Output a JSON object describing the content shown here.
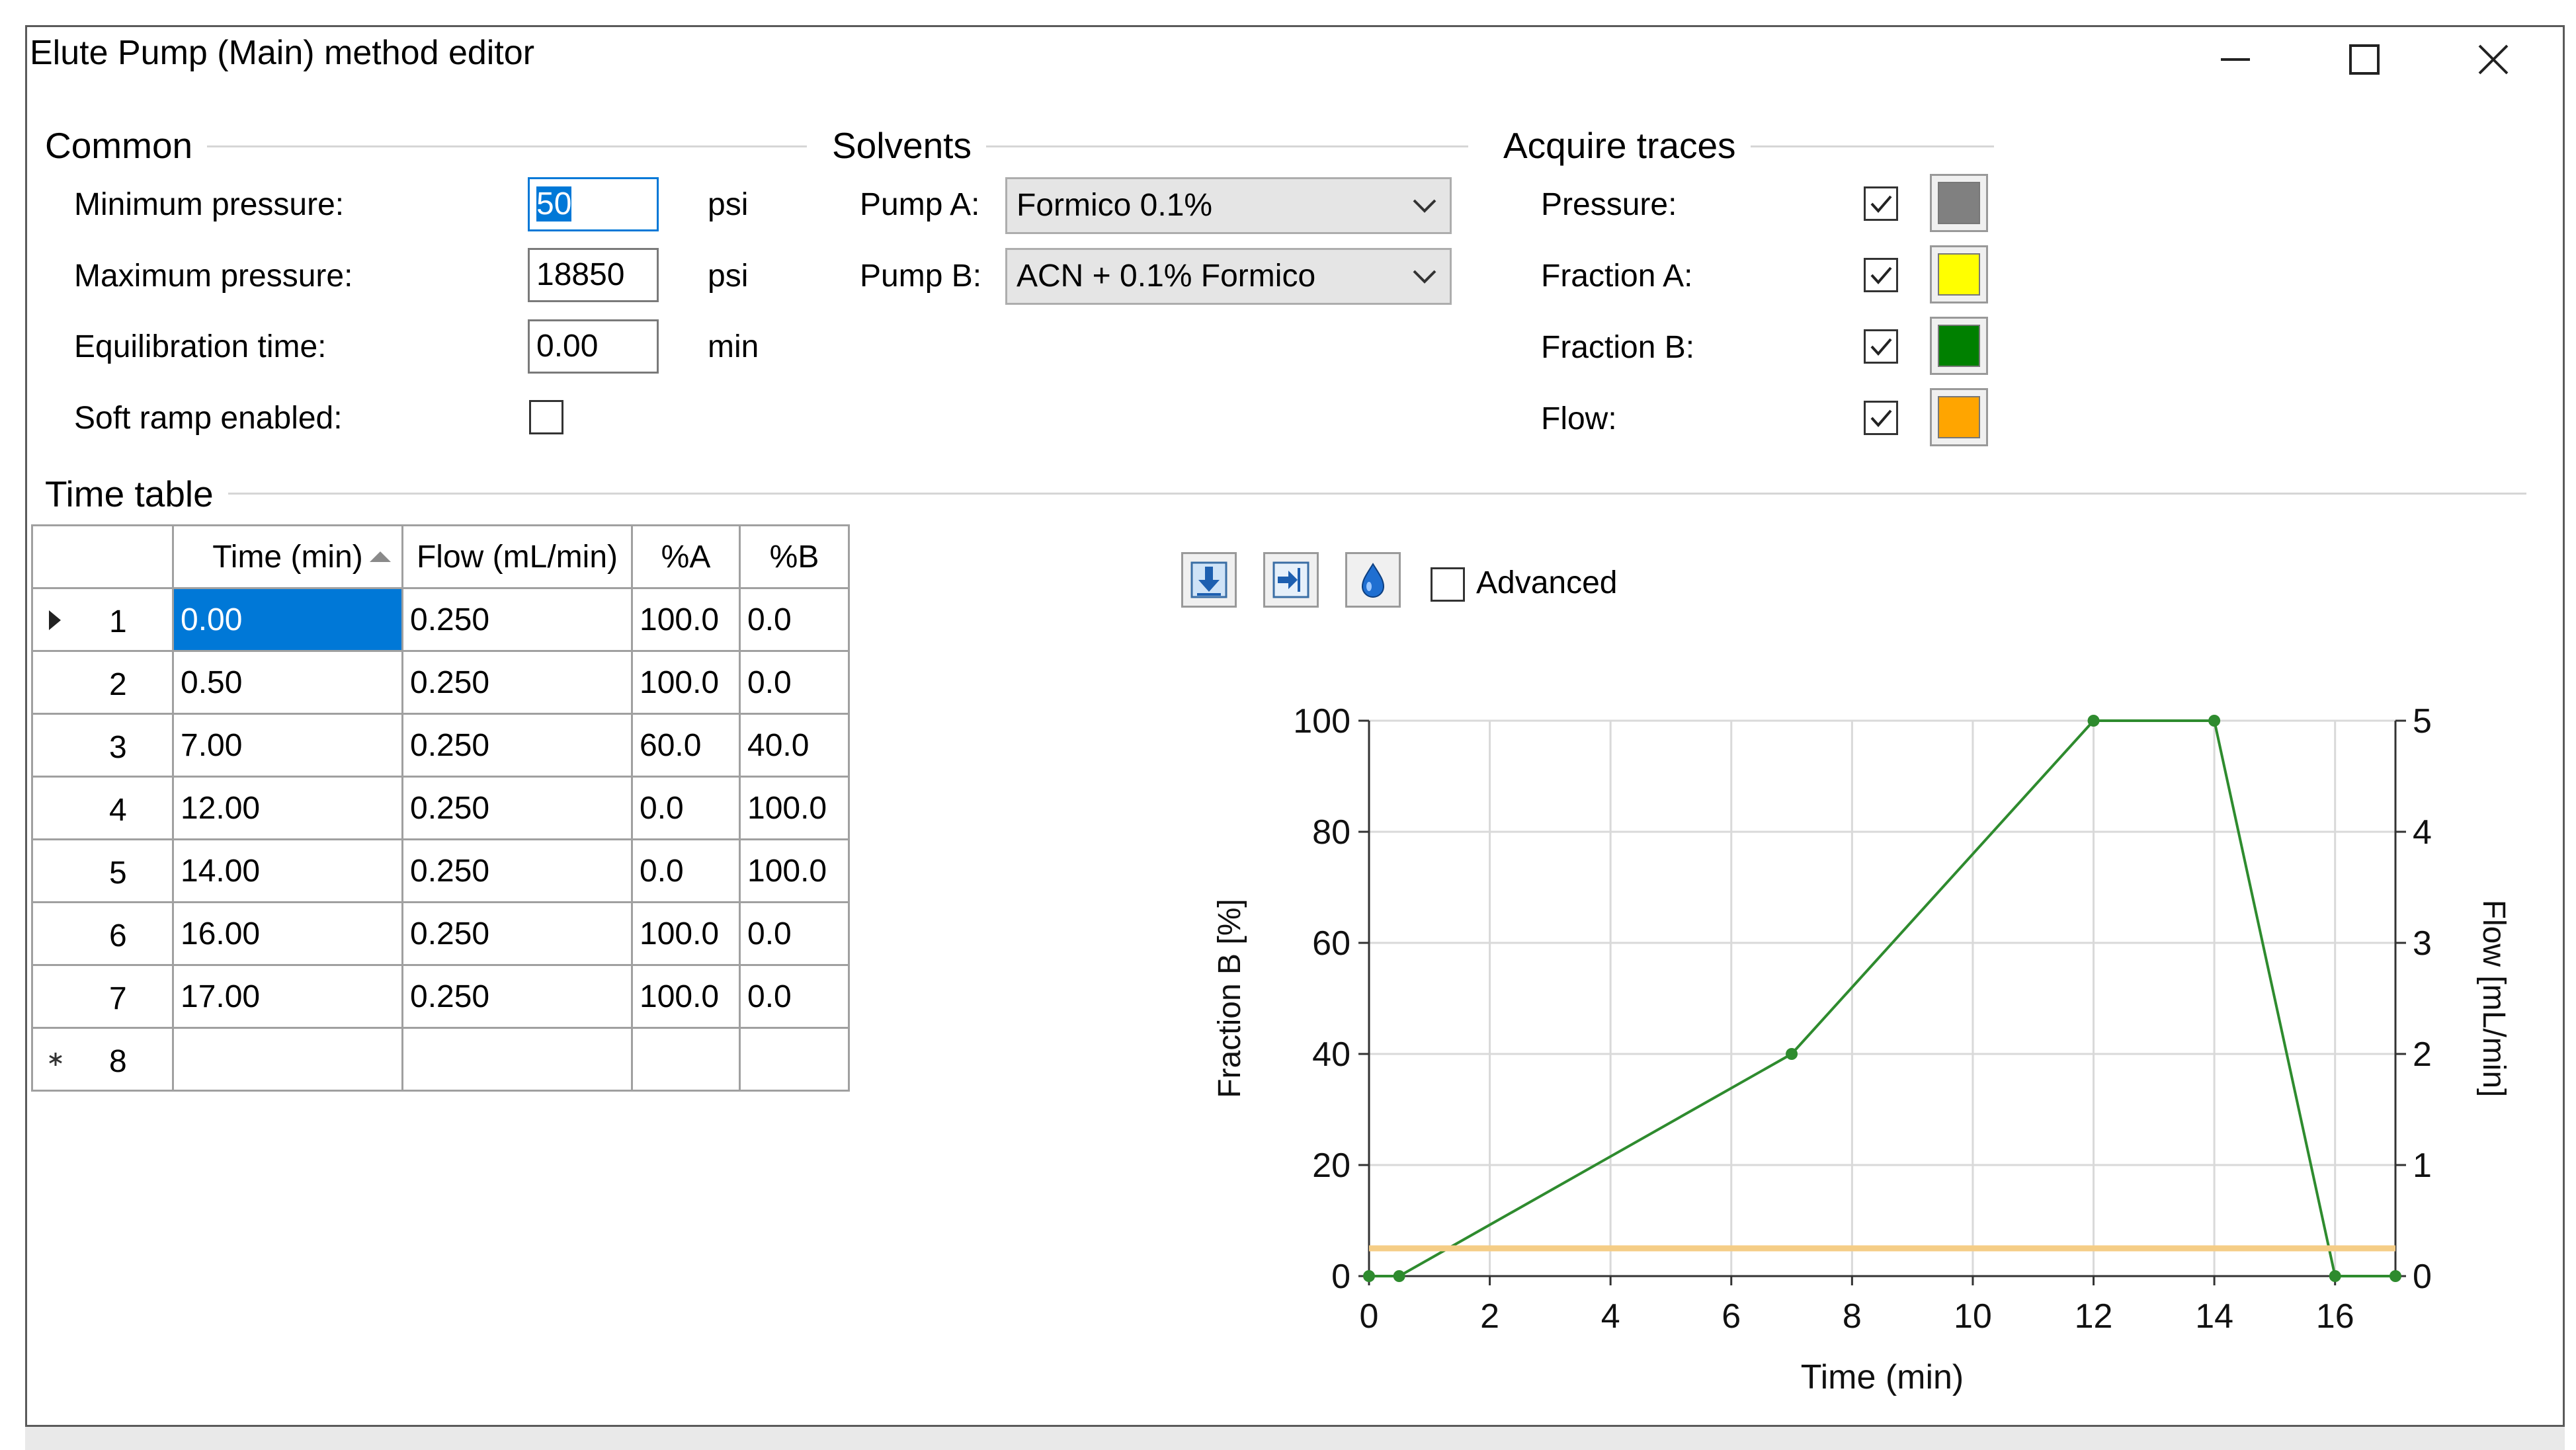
{
  "window": {
    "title": "Elute Pump (Main) method editor"
  },
  "common": {
    "title": "Common",
    "min_pressure": {
      "label": "Minimum pressure:",
      "value": "50",
      "unit": "psi"
    },
    "max_pressure": {
      "label": "Maximum pressure:",
      "value": "18850",
      "unit": "psi"
    },
    "equilibration": {
      "label": "Equilibration time:",
      "value": "0.00",
      "unit": "min"
    },
    "soft_ramp": {
      "label": "Soft ramp enabled:",
      "checked": false
    }
  },
  "solvents": {
    "title": "Solvents",
    "pump_a": {
      "label": "Pump A:",
      "value": "Formico 0.1%"
    },
    "pump_b": {
      "label": "Pump B:",
      "value": "ACN + 0.1% Formico"
    }
  },
  "acquire": {
    "title": "Acquire traces",
    "items": [
      {
        "label": "Pressure:",
        "checked": true,
        "color": "#808080"
      },
      {
        "label": "Fraction A:",
        "checked": true,
        "color": "#ffff00"
      },
      {
        "label": "Fraction B:",
        "checked": true,
        "color": "#008000"
      },
      {
        "label": "Flow:",
        "checked": true,
        "color": "#ffa500"
      }
    ]
  },
  "timetable": {
    "title": "Time table",
    "columns": [
      "Time (min)",
      "Flow (mL/min)",
      "%A",
      "%B"
    ],
    "rows": [
      {
        "n": "1",
        "time": "0.00",
        "flow": "0.250",
        "a": "100.0",
        "b": "0.0"
      },
      {
        "n": "2",
        "time": "0.50",
        "flow": "0.250",
        "a": "100.0",
        "b": "0.0"
      },
      {
        "n": "3",
        "time": "7.00",
        "flow": "0.250",
        "a": "60.0",
        "b": "40.0"
      },
      {
        "n": "4",
        "time": "12.00",
        "flow": "0.250",
        "a": "0.0",
        "b": "100.0"
      },
      {
        "n": "5",
        "time": "14.00",
        "flow": "0.250",
        "a": "0.0",
        "b": "100.0"
      },
      {
        "n": "6",
        "time": "16.00",
        "flow": "0.250",
        "a": "100.0",
        "b": "0.0"
      },
      {
        "n": "7",
        "time": "17.00",
        "flow": "0.250",
        "a": "100.0",
        "b": "0.0"
      }
    ],
    "new_row_n": "8"
  },
  "toolbar": {
    "advanced_label": "Advanced",
    "advanced_checked": false
  },
  "chart_data": {
    "type": "line",
    "xlabel": "Time (min)",
    "ylabel": "Fraction B [%]",
    "y2label": "Flow [mL/min]",
    "xlim": [
      0,
      17
    ],
    "ylim": [
      0,
      100
    ],
    "y2lim": [
      0,
      5
    ],
    "xticks": [
      0,
      2,
      4,
      6,
      8,
      10,
      12,
      14,
      16
    ],
    "yticks": [
      0,
      20,
      40,
      60,
      80,
      100
    ],
    "y2ticks": [
      0,
      1,
      2,
      3,
      4,
      5
    ],
    "grid": true,
    "series": [
      {
        "color": "#2e8b2e",
        "axis": "left",
        "x": [
          0,
          0.5,
          7,
          12,
          14,
          16,
          17
        ],
        "y": [
          0,
          0,
          40,
          100,
          100,
          0,
          0
        ]
      },
      {
        "color": "#f5cd86",
        "axis": "right",
        "x": [
          0,
          17
        ],
        "y": [
          0.25,
          0.25
        ]
      }
    ]
  }
}
